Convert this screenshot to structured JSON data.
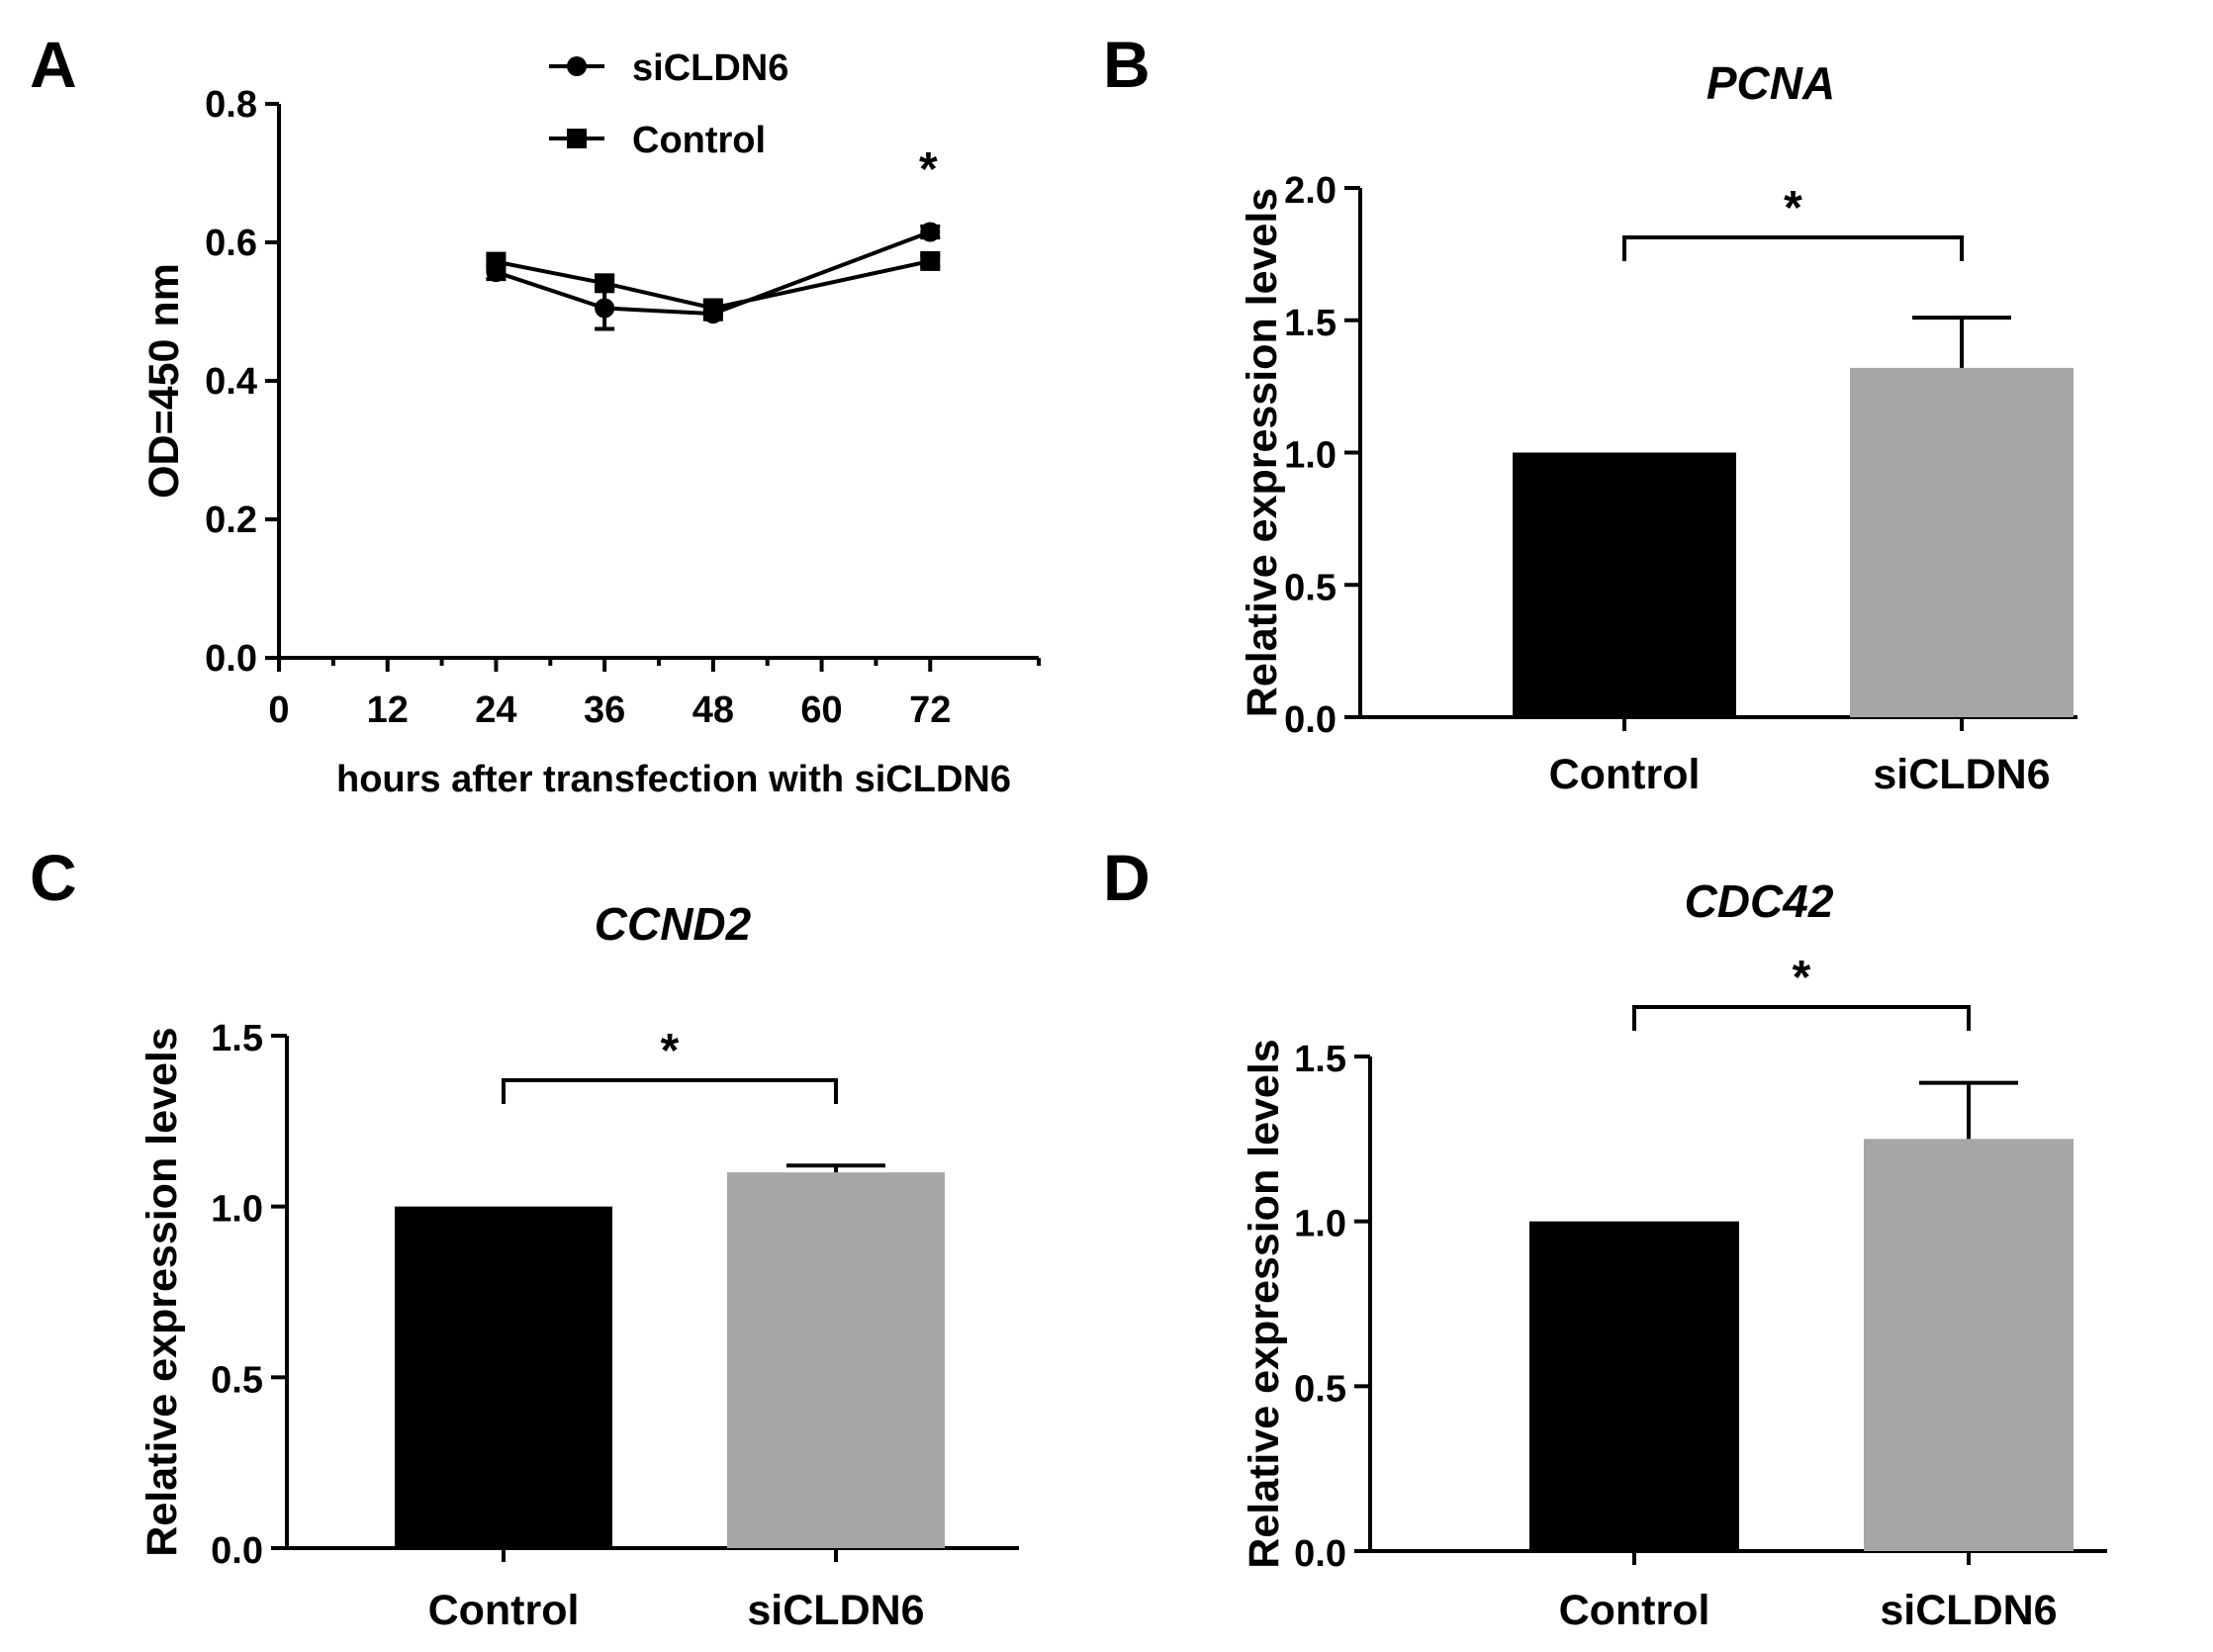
{
  "chart_data": [
    {
      "panel": "A",
      "type": "line",
      "title": "",
      "xlabel": "hours after transfection with siCLDN6",
      "ylabel": "OD=450 nm",
      "xlim": [
        0,
        84
      ],
      "ylim": [
        0,
        0.8
      ],
      "xticks": [
        0,
        12,
        24,
        36,
        48,
        60,
        72
      ],
      "xtick_labels": [
        "0",
        "12",
        "24",
        "36",
        "48",
        "60",
        "72"
      ],
      "yticks": [
        0,
        0.2,
        0.4,
        0.6,
        0.8
      ],
      "ytick_labels": [
        "0.0",
        "0.2",
        "0.4",
        "0.6",
        "0.8"
      ],
      "legend_position": "top-center",
      "series": [
        {
          "name": "siCLDN6",
          "marker": "circle",
          "x": [
            24,
            36,
            48,
            72
          ],
          "values": [
            0.557,
            0.505,
            0.497,
            0.615
          ],
          "errors": [
            0.01,
            0.03,
            0.008,
            0.008
          ]
        },
        {
          "name": "Control",
          "marker": "square",
          "x": [
            24,
            36,
            48,
            72
          ],
          "values": [
            0.572,
            0.541,
            0.505,
            0.573
          ],
          "errors": [
            0.008,
            0.01,
            0.008,
            0.008
          ]
        }
      ],
      "annotations": [
        {
          "x": 72,
          "text": "*"
        }
      ]
    },
    {
      "panel": "B",
      "type": "bar",
      "title": "PCNA",
      "ylabel": "Relative expression levels",
      "categories": [
        "Control",
        "siCLDN6"
      ],
      "values": [
        1.0,
        1.32
      ],
      "errors": [
        0.0,
        0.19
      ],
      "colors": [
        "#000000",
        "#a6a6a9"
      ],
      "ylim": [
        0,
        2.0
      ],
      "yticks": [
        0,
        0.5,
        1.0,
        1.5,
        2.0
      ],
      "ytick_labels": [
        "0.0",
        "0.5",
        "1.0",
        "1.5",
        "2.0"
      ],
      "significance": {
        "text": "*",
        "between": [
          0,
          1
        ]
      }
    },
    {
      "panel": "C",
      "type": "bar",
      "title": "CCND2",
      "ylabel": "Relative expression levels",
      "categories": [
        "Control",
        "siCLDN6"
      ],
      "values": [
        1.0,
        1.1
      ],
      "errors": [
        0.0,
        0.02
      ],
      "colors": [
        "#000000",
        "#a6a6a9"
      ],
      "ylim": [
        0,
        1.5
      ],
      "yticks": [
        0,
        0.5,
        1.0,
        1.5
      ],
      "ytick_labels": [
        "0.0",
        "0.5",
        "1.0",
        "1.5"
      ],
      "significance": {
        "text": "*",
        "between": [
          0,
          1
        ]
      }
    },
    {
      "panel": "D",
      "type": "bar",
      "title": "CDC42",
      "ylabel": "Relative expression levels",
      "categories": [
        "Control",
        "siCLDN6"
      ],
      "values": [
        1.0,
        1.25
      ],
      "errors": [
        0.0,
        0.17
      ],
      "colors": [
        "#000000",
        "#a6a6a9"
      ],
      "ylim": [
        0,
        1.5
      ],
      "yticks": [
        0,
        0.5,
        1.0,
        1.5
      ],
      "ytick_labels": [
        "0.0",
        "0.5",
        "1.0",
        "1.5"
      ],
      "significance": {
        "text": "*",
        "between": [
          0,
          1
        ]
      }
    }
  ]
}
